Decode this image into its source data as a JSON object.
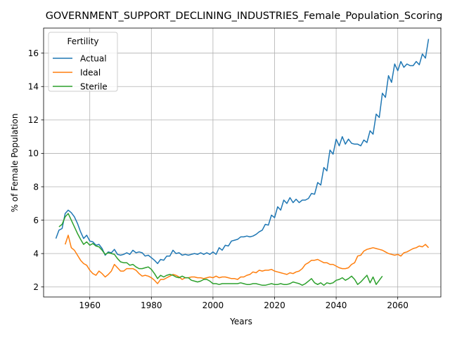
{
  "chart_data": {
    "type": "line",
    "title": "GOVERNMENT_SUPPORT_DECLINING_INDUSTRIES_Female_Population_Scoring",
    "xlabel": "Years",
    "ylabel": "% of Female Population",
    "xlim": [
      1945,
      2074
    ],
    "ylim": [
      1.4,
      17.5
    ],
    "x_ticks": [
      1960,
      1980,
      2000,
      2020,
      2040,
      2060
    ],
    "y_ticks": [
      2,
      4,
      6,
      8,
      10,
      12,
      14,
      16
    ],
    "grid": true,
    "legend": {
      "title": "Fertility",
      "placement": "upper-left"
    },
    "series": [
      {
        "name": "Actual",
        "color": "#1f77b4",
        "x": [
          1949,
          1950,
          1951,
          1952,
          1953,
          1954,
          1955,
          1956,
          1957,
          1958,
          1959,
          1960,
          1961,
          1962,
          1963,
          1964,
          1965,
          1966,
          1967,
          1968,
          1969,
          1970,
          1971,
          1972,
          1973,
          1974,
          1975,
          1976,
          1977,
          1978,
          1979,
          1980,
          1981,
          1982,
          1983,
          1984,
          1985,
          1986,
          1987,
          1988,
          1989,
          1990,
          1991,
          1992,
          1993,
          1994,
          1995,
          1996,
          1997,
          1998,
          1999,
          2000,
          2001,
          2002,
          2003,
          2004,
          2005,
          2006,
          2007,
          2008,
          2009,
          2010,
          2011,
          2012,
          2013,
          2014,
          2015,
          2016,
          2017,
          2018,
          2019,
          2020,
          2021,
          2022,
          2023,
          2024,
          2025,
          2026,
          2027,
          2028,
          2029,
          2030,
          2031,
          2032,
          2033,
          2034,
          2035,
          2036,
          2037,
          2038,
          2039,
          2040,
          2041,
          2042,
          2043,
          2044,
          2045,
          2046,
          2047,
          2048,
          2049,
          2050,
          2051,
          2052,
          2053,
          2054,
          2055,
          2056,
          2057,
          2058,
          2059,
          2060,
          2061,
          2062,
          2063,
          2064,
          2065,
          2066,
          2067,
          2068,
          2069,
          2070
        ],
        "values": [
          4.9,
          5.4,
          5.5,
          6.4,
          6.6,
          6.45,
          6.2,
          5.8,
          5.3,
          4.9,
          5.1,
          4.75,
          4.7,
          4.5,
          4.55,
          4.3,
          3.9,
          4.1,
          4.05,
          4.25,
          3.95,
          3.9,
          3.95,
          4.05,
          3.95,
          4.2,
          4.05,
          4.1,
          4.05,
          3.85,
          3.9,
          3.75,
          3.6,
          3.4,
          3.65,
          3.6,
          3.85,
          3.85,
          4.2,
          4.0,
          4.05,
          3.9,
          3.95,
          3.9,
          3.95,
          4.0,
          3.95,
          4.05,
          3.95,
          4.05,
          3.95,
          4.1,
          3.95,
          4.35,
          4.2,
          4.5,
          4.45,
          4.75,
          4.8,
          4.85,
          5.0,
          5.0,
          5.05,
          5.0,
          5.05,
          5.15,
          5.3,
          5.4,
          5.75,
          5.7,
          6.3,
          6.15,
          6.8,
          6.6,
          7.2,
          7.0,
          7.35,
          7.05,
          7.25,
          7.05,
          7.2,
          7.2,
          7.3,
          7.6,
          7.55,
          8.25,
          8.1,
          9.15,
          8.95,
          10.2,
          9.95,
          10.85,
          10.45,
          11.0,
          10.55,
          10.85,
          10.6,
          10.55,
          10.55,
          10.45,
          10.8,
          10.65,
          11.35,
          11.15,
          12.35,
          12.15,
          13.6,
          13.35,
          14.65,
          14.25,
          15.35,
          14.95,
          15.5,
          15.15,
          15.35,
          15.25,
          15.25,
          15.5,
          15.3,
          15.95,
          15.7,
          16.85
        ]
      },
      {
        "name": "Ideal",
        "color": "#ff7f0e",
        "x": [
          1952,
          1953,
          1954,
          1955,
          1956,
          1957,
          1958,
          1959,
          1960,
          1961,
          1962,
          1963,
          1964,
          1965,
          1966,
          1967,
          1968,
          1969,
          1970,
          1971,
          1972,
          1973,
          1974,
          1975,
          1976,
          1977,
          1978,
          1979,
          1980,
          1981,
          1982,
          1983,
          1984,
          1985,
          1986,
          1987,
          1988,
          1989,
          1990,
          1991,
          1992,
          1993,
          1994,
          1995,
          1996,
          1997,
          1998,
          1999,
          2000,
          2001,
          2002,
          2003,
          2004,
          2005,
          2006,
          2007,
          2008,
          2009,
          2010,
          2011,
          2012,
          2013,
          2014,
          2015,
          2016,
          2017,
          2018,
          2019,
          2020,
          2021,
          2022,
          2023,
          2024,
          2025,
          2026,
          2027,
          2028,
          2029,
          2030,
          2031,
          2032,
          2033,
          2034,
          2035,
          2036,
          2037,
          2038,
          2039,
          2040,
          2041,
          2042,
          2043,
          2044,
          2045,
          2046,
          2047,
          2048,
          2049,
          2050,
          2051,
          2052,
          2053,
          2054,
          2055,
          2056,
          2057,
          2058,
          2059,
          2060,
          2061,
          2062,
          2063,
          2064,
          2065,
          2066,
          2067,
          2068,
          2069,
          2070
        ],
        "values": [
          4.55,
          5.1,
          4.35,
          4.2,
          3.9,
          3.6,
          3.4,
          3.3,
          3.0,
          2.8,
          2.7,
          2.95,
          2.8,
          2.6,
          2.75,
          2.95,
          3.35,
          3.15,
          2.95,
          2.95,
          3.1,
          3.1,
          3.1,
          3.0,
          2.8,
          2.65,
          2.7,
          2.65,
          2.55,
          2.4,
          2.2,
          2.45,
          2.45,
          2.55,
          2.65,
          2.75,
          2.7,
          2.6,
          2.45,
          2.55,
          2.55,
          2.6,
          2.6,
          2.55,
          2.55,
          2.5,
          2.55,
          2.6,
          2.55,
          2.65,
          2.55,
          2.6,
          2.6,
          2.55,
          2.5,
          2.5,
          2.45,
          2.6,
          2.6,
          2.7,
          2.75,
          2.9,
          2.85,
          3.0,
          2.95,
          3.0,
          3.0,
          3.05,
          2.95,
          2.9,
          2.85,
          2.8,
          2.75,
          2.85,
          2.8,
          2.9,
          2.95,
          3.1,
          3.35,
          3.45,
          3.6,
          3.6,
          3.65,
          3.55,
          3.45,
          3.45,
          3.35,
          3.35,
          3.25,
          3.15,
          3.1,
          3.1,
          3.15,
          3.35,
          3.45,
          3.85,
          3.9,
          4.15,
          4.25,
          4.3,
          4.35,
          4.3,
          4.25,
          4.2,
          4.1,
          4.0,
          3.95,
          3.9,
          3.95,
          3.85,
          4.05,
          4.1,
          4.2,
          4.3,
          4.35,
          4.45,
          4.4,
          4.55,
          4.35
        ]
      },
      {
        "name": "Sterile",
        "color": "#2ca02c",
        "x": [
          1950,
          1951,
          1952,
          1953,
          1954,
          1955,
          1956,
          1957,
          1958,
          1959,
          1960,
          1961,
          1962,
          1963,
          1964,
          1965,
          1966,
          1967,
          1968,
          1969,
          1970,
          1971,
          1972,
          1973,
          1974,
          1975,
          1976,
          1977,
          1978,
          1979,
          1980,
          1981,
          1982,
          1983,
          1984,
          1985,
          1986,
          1987,
          1988,
          1989,
          1990,
          1991,
          1992,
          1993,
          1994,
          1995,
          1996,
          1997,
          1998,
          1999,
          2000,
          2001,
          2002,
          2003,
          2004,
          2005,
          2006,
          2007,
          2008,
          2009,
          2010,
          2011,
          2012,
          2013,
          2014,
          2015,
          2016,
          2017,
          2018,
          2019,
          2020,
          2021,
          2022,
          2023,
          2024,
          2025,
          2026,
          2027,
          2028,
          2029,
          2030,
          2031,
          2032,
          2033,
          2034,
          2035,
          2036,
          2037,
          2038,
          2039,
          2040,
          2041,
          2042,
          2043,
          2044,
          2045,
          2046,
          2047,
          2048,
          2049,
          2050,
          2051,
          2052,
          2053,
          2054,
          2055
        ],
        "values": [
          5.6,
          5.75,
          6.2,
          6.4,
          6.0,
          5.6,
          5.2,
          4.85,
          4.55,
          4.7,
          4.5,
          4.6,
          4.45,
          4.4,
          4.2,
          3.95,
          4.05,
          4.0,
          3.95,
          3.7,
          3.5,
          3.45,
          3.45,
          3.3,
          3.35,
          3.2,
          3.1,
          3.1,
          3.15,
          3.2,
          3.05,
          2.8,
          2.5,
          2.7,
          2.6,
          2.7,
          2.75,
          2.7,
          2.6,
          2.55,
          2.65,
          2.55,
          2.55,
          2.4,
          2.35,
          2.3,
          2.35,
          2.45,
          2.45,
          2.35,
          2.2,
          2.2,
          2.15,
          2.2,
          2.2,
          2.2,
          2.2,
          2.2,
          2.2,
          2.25,
          2.2,
          2.15,
          2.15,
          2.2,
          2.2,
          2.15,
          2.1,
          2.1,
          2.15,
          2.2,
          2.15,
          2.15,
          2.2,
          2.15,
          2.15,
          2.2,
          2.3,
          2.25,
          2.2,
          2.1,
          2.2,
          2.35,
          2.5,
          2.25,
          2.15,
          2.25,
          2.1,
          2.25,
          2.2,
          2.25,
          2.4,
          2.45,
          2.55,
          2.4,
          2.5,
          2.65,
          2.45,
          2.15,
          2.3,
          2.5,
          2.7,
          2.25,
          2.6,
          2.15,
          2.4,
          2.65
        ]
      }
    ]
  }
}
